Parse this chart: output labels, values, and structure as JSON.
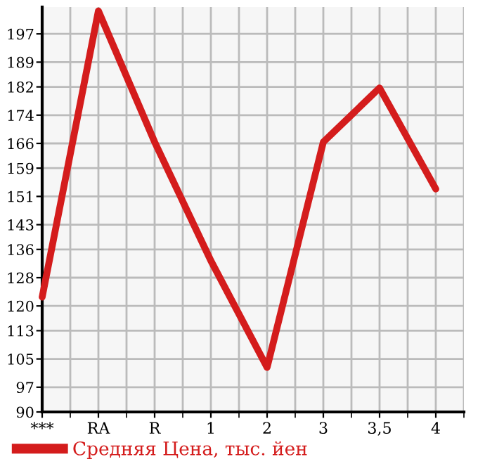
{
  "chart_data": {
    "type": "line",
    "categories": [
      "***",
      "RA",
      "R",
      "1",
      "2",
      "3",
      "3,5",
      "4"
    ],
    "series": [
      {
        "name": "Средняя Цена, тыс. йен",
        "color": "#d41c1c",
        "values": [
          122.5,
          203.5,
          166.4,
          132.8,
          102.6,
          166.4,
          181.7,
          153.1
        ]
      }
    ],
    "ylim": [
      90,
      204.6
    ],
    "yticks": [
      90,
      97,
      105,
      113,
      120,
      128,
      136,
      143,
      151,
      159,
      166,
      174,
      182,
      189,
      197
    ],
    "grid": true,
    "legend": "bottom left",
    "marker": "none",
    "line_style": "solid"
  }
}
